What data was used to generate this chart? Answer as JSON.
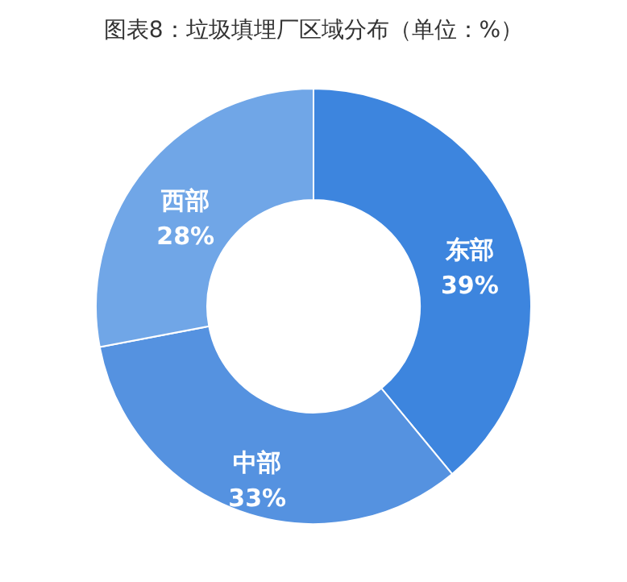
{
  "chart_data": {
    "type": "donut",
    "title": "图表8：垃圾填埋厂区域分布（单位：%）",
    "categories": [
      "东部",
      "中部",
      "西部"
    ],
    "values": [
      39,
      33,
      28
    ],
    "colors": [
      "#3d85de",
      "#5592e0",
      "#70a6e7"
    ],
    "value_labels": [
      "39%",
      "33%",
      "28%"
    ],
    "legend": false
  }
}
